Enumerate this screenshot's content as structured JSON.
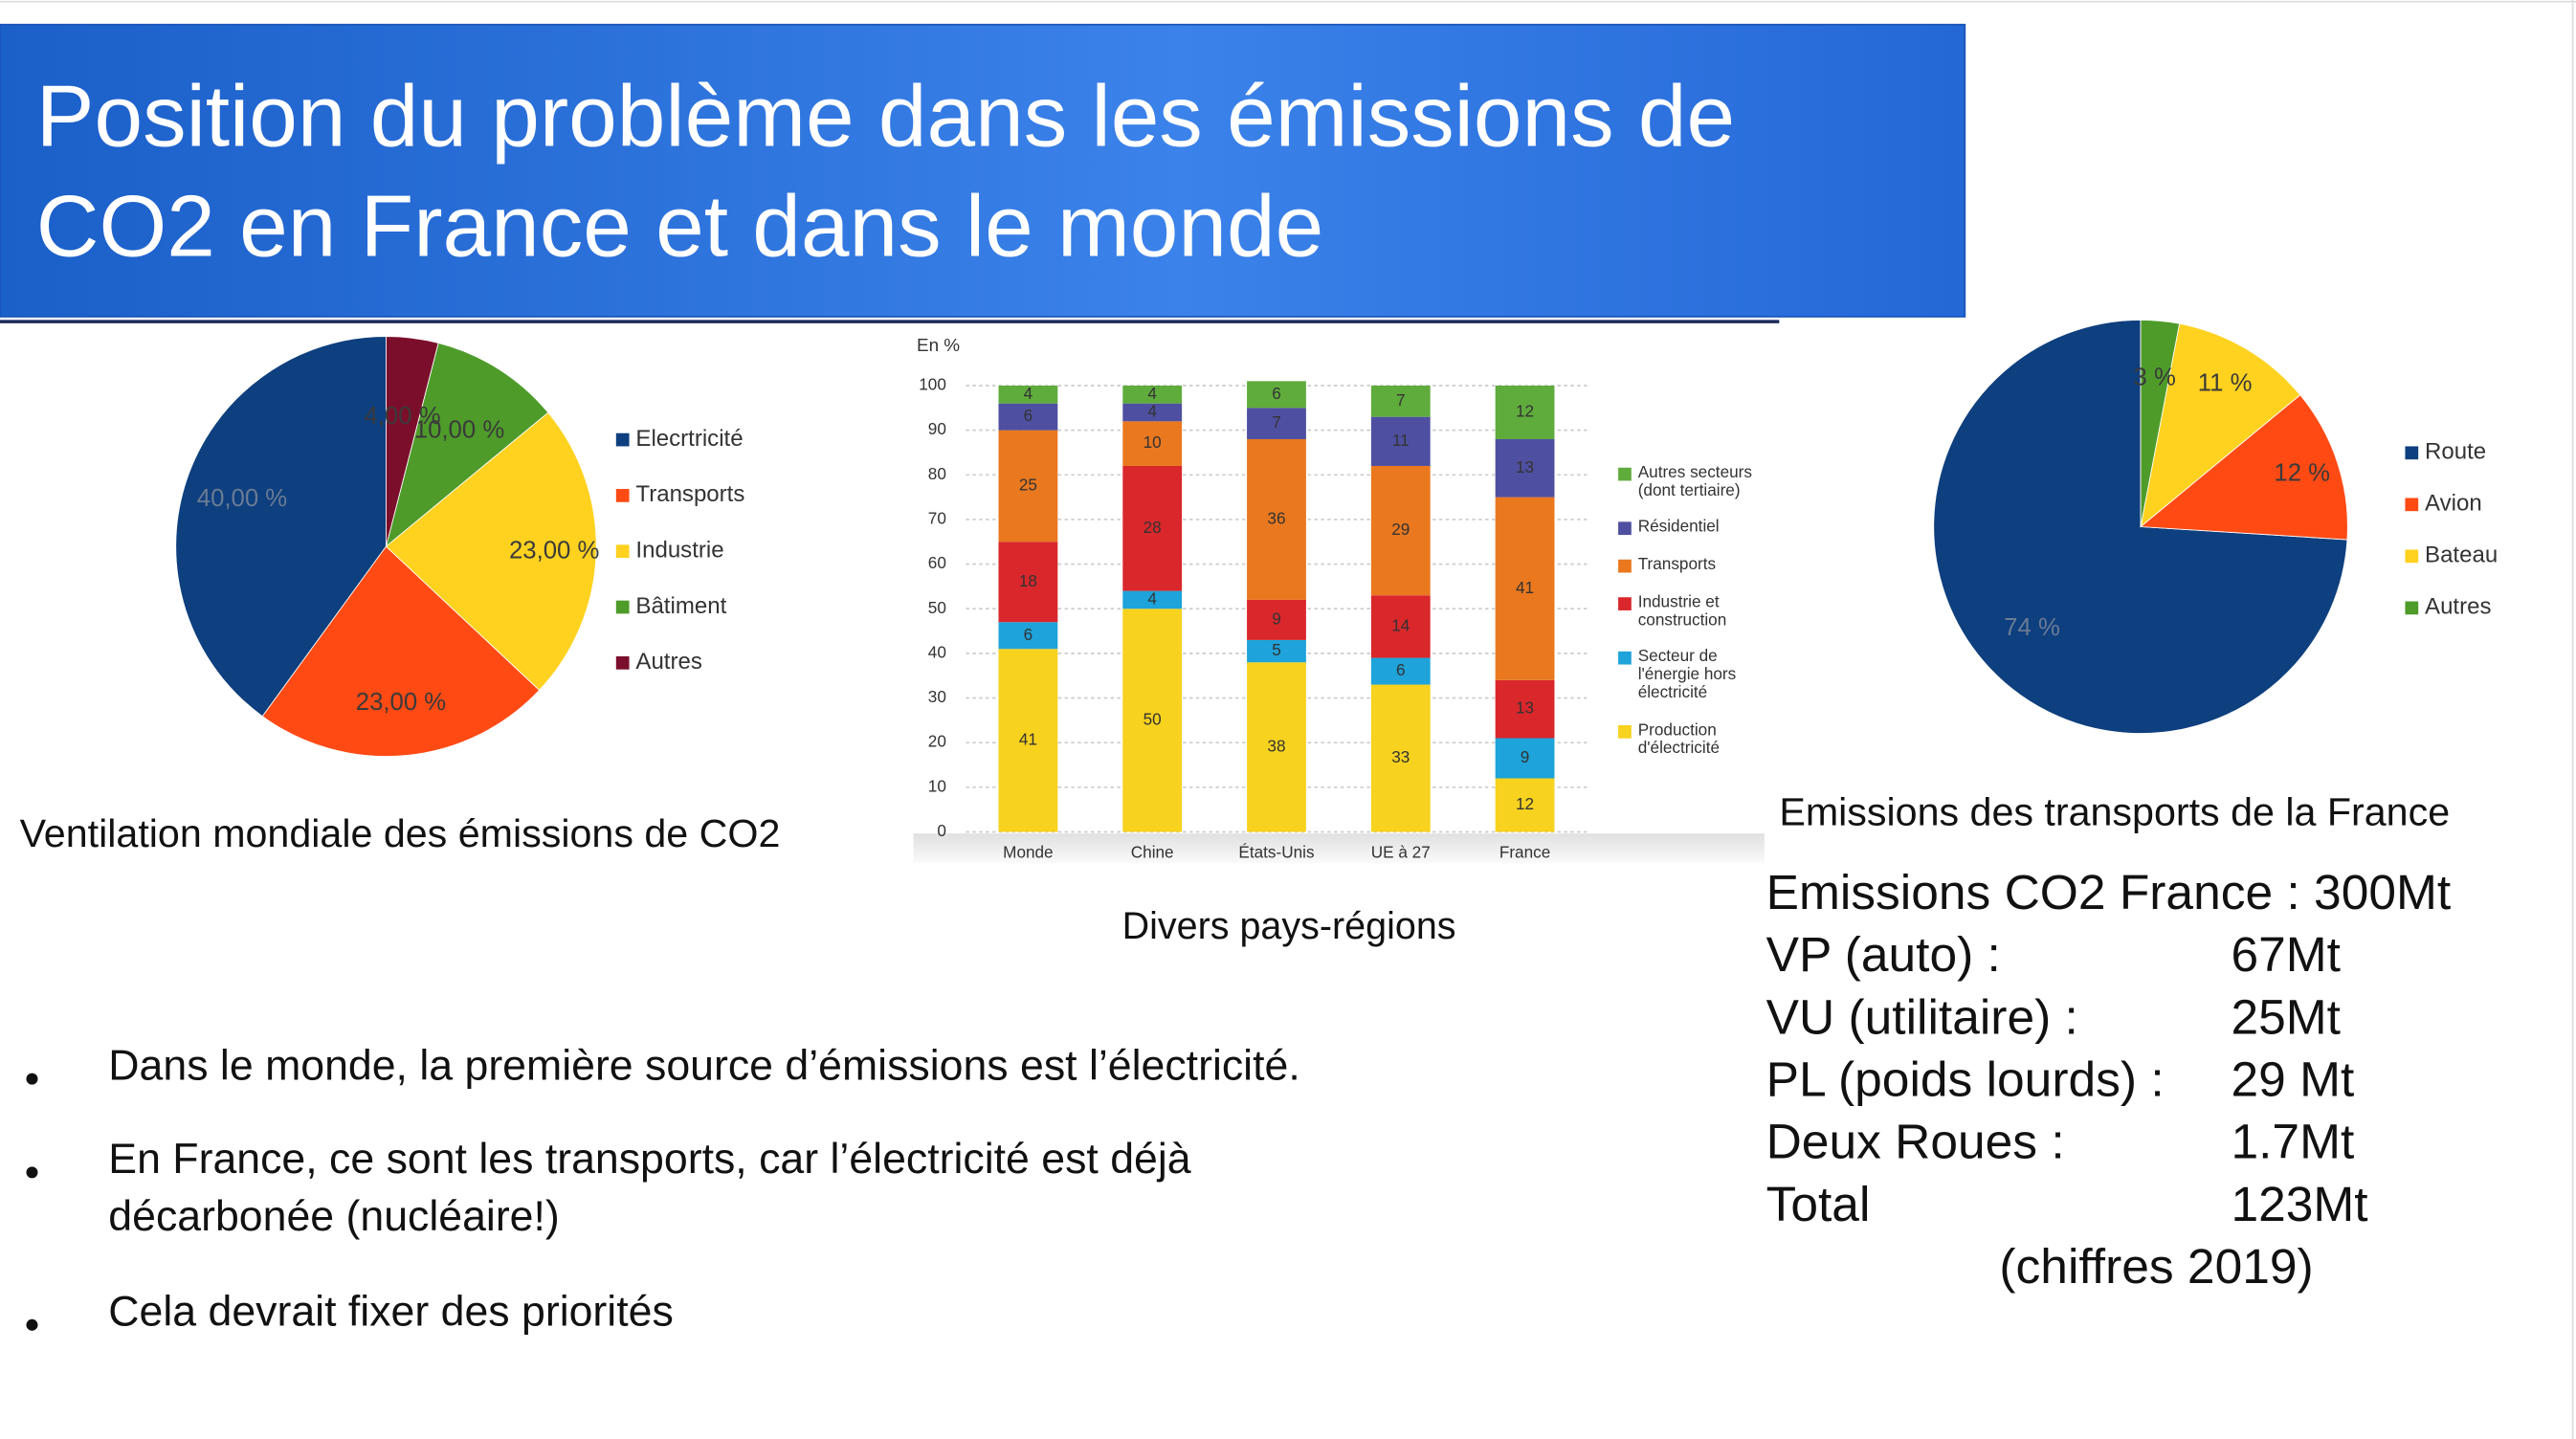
{
  "header": {
    "title": "Position du problème dans les émissions de CO2 en France et dans le monde"
  },
  "chart_data": [
    {
      "type": "pie",
      "title": "Ventilation mondiale des émissions de CO2",
      "categories": [
        "Elecrtricité",
        "Transports",
        "Industrie",
        "Bâtiment",
        "Autres"
      ],
      "values": [
        40,
        23,
        23,
        10,
        4
      ],
      "value_labels": [
        "40,00 %",
        "23,00 %",
        "23,00 %",
        "10,00 %",
        "4,00 %"
      ],
      "colors": [
        "#0e3f7e",
        "#ff4a14",
        "#ffd21f",
        "#4e9b2a",
        "#7b0f2b"
      ]
    },
    {
      "type": "bar",
      "stacked": true,
      "title": "Divers pays-régions",
      "ylabel": "En %",
      "categories": [
        "Monde",
        "Chine",
        "États-Unis",
        "UE à 27",
        "France"
      ],
      "ylim": [
        0,
        100
      ],
      "yticks": [
        0,
        10,
        20,
        30,
        40,
        50,
        60,
        70,
        80,
        90,
        100
      ],
      "grid": true,
      "series": [
        {
          "name": "Production d'électricité",
          "color": "#f7d21e",
          "values": [
            41,
            50,
            38,
            33,
            12
          ]
        },
        {
          "name": "Secteur de l'énergie hors électricité",
          "color": "#1ea3da",
          "values": [
            6,
            4,
            5,
            6,
            9
          ]
        },
        {
          "name": "Industrie et construction",
          "color": "#d9272b",
          "values": [
            18,
            28,
            9,
            14,
            13
          ]
        },
        {
          "name": "Transports",
          "color": "#e9781f",
          "values": [
            25,
            10,
            36,
            29,
            41
          ]
        },
        {
          "name": "Résidentiel",
          "color": "#4f4fa1",
          "values": [
            6,
            4,
            7,
            11,
            13
          ]
        },
        {
          "name": "Autres secteurs (dont tertiaire)",
          "color": "#5fac3c",
          "values": [
            4,
            4,
            6,
            7,
            12
          ]
        }
      ]
    },
    {
      "type": "pie",
      "title": "Emissions des transports de la France",
      "categories": [
        "Route",
        "Avion",
        "Bateau",
        "Autres"
      ],
      "values": [
        74,
        12,
        11,
        3
      ],
      "value_labels": [
        "74 %",
        "12 %",
        "11 %",
        "3 %"
      ],
      "colors": [
        "#0e3f7e",
        "#ff4a14",
        "#ffd21f",
        "#4e9b2a"
      ]
    }
  ],
  "bullets": [
    "Dans le monde, la première source d’émissions est l’électricité.",
    "En France, ce sont les transports, car l’électricité est déjà décarbonée (nucléaire!)",
    "Cela devrait fixer des priorités"
  ],
  "stats": {
    "headline": "Emissions CO2 France : 300Mt",
    "rows": [
      [
        "VP (auto) :",
        "67Mt"
      ],
      [
        "VU (utilitaire) :",
        "25Mt"
      ],
      [
        "PL (poids lourds) :",
        "29 Mt"
      ],
      [
        "Deux Roues :",
        "1.7Mt"
      ],
      [
        "Total",
        "123Mt"
      ]
    ],
    "note": "(chiffres 2019)"
  }
}
